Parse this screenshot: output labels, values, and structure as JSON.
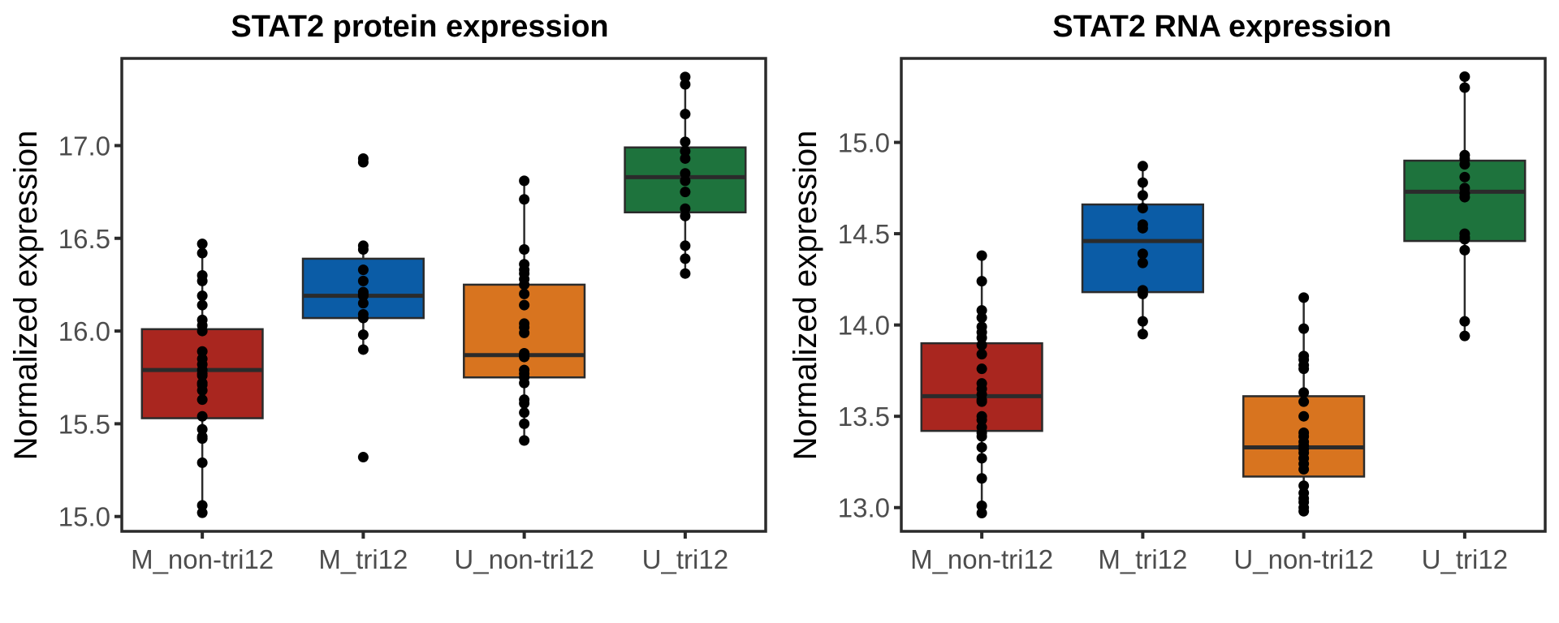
{
  "chart_data": [
    {
      "type": "box",
      "title": "STAT2 protein expression",
      "xlabel": "",
      "ylabel": "Normalized expression",
      "ylim": [
        14.92,
        17.47
      ],
      "yticks": [
        "15.0",
        "15.5",
        "16.0",
        "16.5",
        "17.0"
      ],
      "ytick_values": [
        15.0,
        15.5,
        16.0,
        16.5,
        17.0
      ],
      "grid": false,
      "legend": "none",
      "categories": [
        "M_non-tri12",
        "M_tri12",
        "U_non-tri12",
        "U_tri12"
      ],
      "colors": [
        "#A9261F",
        "#0B5CA6",
        "#D8741F",
        "#1E733D"
      ],
      "boxes": [
        {
          "category": "M_non-tri12",
          "q1": 15.53,
          "median": 15.79,
          "q3": 16.01,
          "whisker_low": 15.02,
          "whisker_high": 16.47,
          "points": [
            16.47,
            16.42,
            16.3,
            16.27,
            16.19,
            16.14,
            16.06,
            16.03,
            16.0,
            15.89,
            15.85,
            15.82,
            15.79,
            15.77,
            15.76,
            15.72,
            15.71,
            15.68,
            15.63,
            15.54,
            15.47,
            15.43,
            15.42,
            15.29,
            15.06,
            15.02
          ]
        },
        {
          "category": "M_tri12",
          "q1": 16.07,
          "median": 16.19,
          "q3": 16.39,
          "whisker_low": 15.9,
          "whisker_high": 16.46,
          "points": [
            16.93,
            16.91,
            16.46,
            16.44,
            16.33,
            16.27,
            16.21,
            16.2,
            16.19,
            16.15,
            16.09,
            16.07,
            15.98,
            15.9,
            15.32
          ]
        },
        {
          "category": "U_non-tri12",
          "q1": 15.75,
          "median": 15.87,
          "q3": 16.25,
          "whisker_low": 15.41,
          "whisker_high": 16.81,
          "points": [
            16.81,
            16.71,
            16.44,
            16.36,
            16.33,
            16.31,
            16.28,
            16.25,
            16.2,
            16.14,
            16.04,
            16.02,
            15.99,
            15.88,
            15.87,
            15.86,
            15.79,
            15.77,
            15.75,
            15.72,
            15.63,
            15.61,
            15.56,
            15.5,
            15.41
          ]
        },
        {
          "category": "U_tri12",
          "q1": 16.64,
          "median": 16.83,
          "q3": 16.99,
          "whisker_low": 16.31,
          "whisker_high": 17.37,
          "points": [
            17.37,
            17.33,
            17.17,
            17.02,
            16.97,
            16.93,
            16.85,
            16.81,
            16.75,
            16.66,
            16.62,
            16.46,
            16.39,
            16.31
          ]
        }
      ]
    },
    {
      "type": "box",
      "title": "STAT2 RNA expression",
      "xlabel": "",
      "ylabel": "Normalized expression",
      "ylim": [
        12.87,
        15.46
      ],
      "yticks": [
        "13.0",
        "13.5",
        "14.0",
        "14.5",
        "15.0"
      ],
      "ytick_values": [
        13.0,
        13.5,
        14.0,
        14.5,
        15.0
      ],
      "grid": false,
      "legend": "none",
      "categories": [
        "M_non-tri12",
        "M_tri12",
        "U_non-tri12",
        "U_tri12"
      ],
      "colors": [
        "#A9261F",
        "#0B5CA6",
        "#D8741F",
        "#1E733D"
      ],
      "boxes": [
        {
          "category": "M_non-tri12",
          "q1": 13.42,
          "median": 13.61,
          "q3": 13.9,
          "whisker_low": 12.97,
          "whisker_high": 14.38,
          "points": [
            14.38,
            14.24,
            14.08,
            14.04,
            13.99,
            13.96,
            13.93,
            13.89,
            13.84,
            13.76,
            13.68,
            13.65,
            13.62,
            13.59,
            13.58,
            13.5,
            13.48,
            13.44,
            13.41,
            13.39,
            13.33,
            13.27,
            13.16,
            13.01,
            12.97
          ]
        },
        {
          "category": "M_tri12",
          "q1": 14.18,
          "median": 14.46,
          "q3": 14.66,
          "whisker_low": 13.95,
          "whisker_high": 14.87,
          "points": [
            14.87,
            14.78,
            14.71,
            14.64,
            14.55,
            14.53,
            14.39,
            14.34,
            14.19,
            14.17,
            14.02,
            13.95
          ]
        },
        {
          "category": "U_non-tri12",
          "q1": 13.17,
          "median": 13.33,
          "q3": 13.61,
          "whisker_low": 12.98,
          "whisker_high": 14.15,
          "points": [
            14.15,
            13.98,
            13.83,
            13.81,
            13.78,
            13.76,
            13.63,
            13.58,
            13.5,
            13.41,
            13.39,
            13.36,
            13.34,
            13.32,
            13.3,
            13.27,
            13.24,
            13.21,
            13.12,
            13.08,
            13.05,
            13.03,
            13.0,
            12.98
          ]
        },
        {
          "category": "U_tri12",
          "q1": 14.46,
          "median": 14.73,
          "q3": 14.9,
          "whisker_low": 13.94,
          "whisker_high": 15.36,
          "points": [
            15.36,
            15.3,
            14.93,
            14.91,
            14.88,
            14.81,
            14.75,
            14.72,
            14.7,
            14.5,
            14.48,
            14.47,
            14.41,
            14.02,
            13.94
          ]
        }
      ]
    }
  ]
}
